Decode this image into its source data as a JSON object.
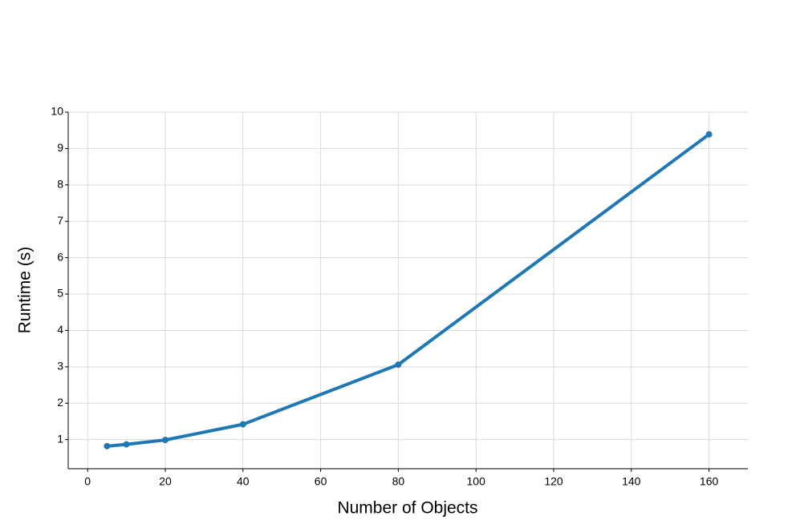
{
  "chart_data": {
    "type": "line",
    "xlabel": "Number of Objects",
    "ylabel": "Runtime (s)",
    "x": [
      5,
      10,
      20,
      40,
      80,
      160
    ],
    "series": [
      {
        "color": "#1f77b4",
        "values": [
          0.82,
          0.87,
          0.99,
          1.42,
          3.06,
          9.39
        ]
      }
    ],
    "xlim": [
      -5,
      170
    ],
    "xticks": [
      0,
      20,
      40,
      60,
      80,
      100,
      120,
      140,
      160
    ],
    "ylim": [
      0.2,
      10
    ],
    "yticks": [
      1,
      2,
      3,
      4,
      5,
      6,
      7,
      8,
      9,
      10
    ],
    "grid": true
  }
}
